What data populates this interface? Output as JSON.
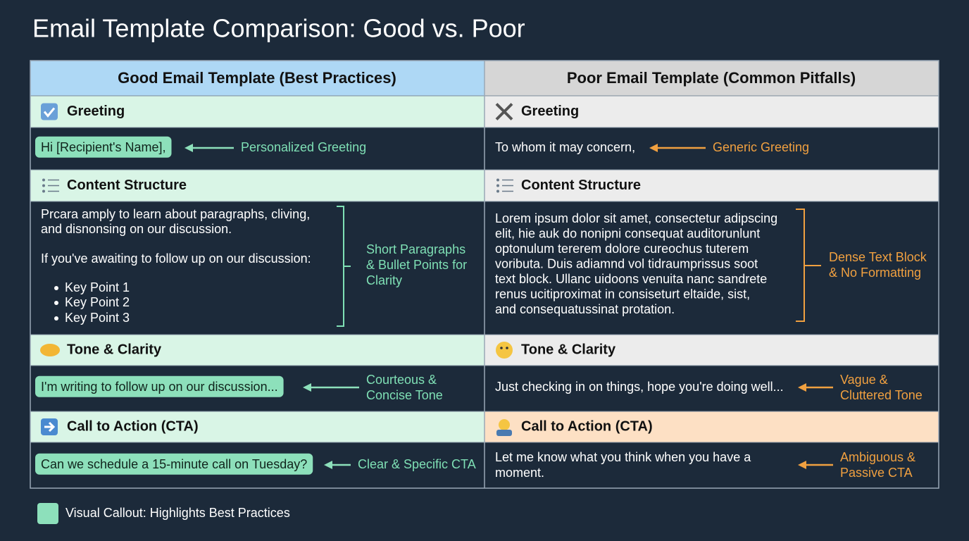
{
  "title": "Email Template Comparison: Good vs. Poor",
  "columns": [
    "Good Email Template (Best Practices)",
    "Poor Email Template (Common Pitfalls)"
  ],
  "sections": [
    {
      "good": {
        "heading": "Greeting",
        "example": [
          "Hi [Recipient's Name],"
        ],
        "callout": [
          "Personalized Greeting"
        ]
      },
      "poor": {
        "heading": "Greeting",
        "example": [
          "To whom it may concern,"
        ],
        "callout": [
          "Generic Greeting"
        ]
      }
    },
    {
      "good": {
        "heading": "Content Structure",
        "example": [
          "Prcara amply to learn about paragraphs, cliving,",
          "and disnonsing on our discussion.",
          "If you've awaiting to follow up on our discussion:"
        ],
        "bullets": [
          "Key Point 1",
          "Key Point 2",
          "Key Point 3"
        ],
        "callout": [
          "Short Paragraphs",
          "& Bullet Points for",
          "Clarity"
        ]
      },
      "poor": {
        "heading": "Content Structure",
        "example": [
          "Lorem ipsum dolor sit amet, consectetur adipscing",
          "elit, hie auk do nonipni consequat auditorunlunt",
          "optonulum tererem dolore cureochus tuterem",
          "voributa. Duis adiamnd vol tidraumprissus soot",
          "text block. Ullanc uidoons venuita nanc sandrete",
          "renus ucitiproximat in consiseturt eltaide, sist,",
          "and consequatussinat protation."
        ],
        "callout": [
          "Dense Text Block",
          "& No Formatting"
        ]
      }
    },
    {
      "good": {
        "heading": "Tone & Clarity",
        "example": [
          "I'm writing to follow up on our discussion..."
        ],
        "callout": [
          "Courteous &",
          "Concise Tone"
        ]
      },
      "poor": {
        "heading": "Tone & Clarity",
        "example": [
          "Just checking in on things, hope you're doing well..."
        ],
        "callout": [
          "Vague &",
          "Cluttered Tone"
        ]
      }
    },
    {
      "good": {
        "heading": "Call to Action (CTA)",
        "example": [
          "Can we schedule a 15-minute call on Tuesday?"
        ],
        "callout": [
          "Clear & Specific CTA"
        ]
      },
      "poor": {
        "heading": "Call to Action (CTA)",
        "example": [
          "Let me know what you think when you have a",
          "moment."
        ],
        "callout": [
          "Ambiguous &",
          "Passive CTA"
        ]
      }
    }
  ],
  "legend": "Visual Callout: Highlights Best Practices"
}
